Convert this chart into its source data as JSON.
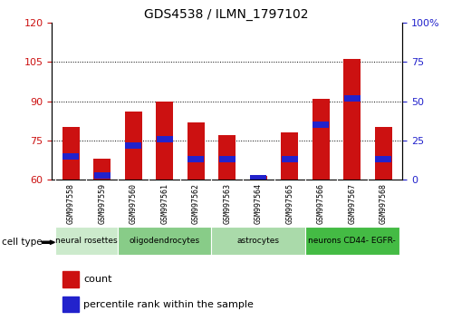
{
  "title": "GDS4538 / ILMN_1797102",
  "samples": [
    "GSM997558",
    "GSM997559",
    "GSM997560",
    "GSM997561",
    "GSM997562",
    "GSM997563",
    "GSM997564",
    "GSM997565",
    "GSM997566",
    "GSM997567",
    "GSM997568"
  ],
  "count_values": [
    80,
    68,
    86,
    90,
    82,
    77,
    61.5,
    78,
    91,
    106,
    80
  ],
  "percentile_values": [
    15,
    3,
    22,
    26,
    13,
    13,
    1,
    13,
    35,
    52,
    13
  ],
  "ylim_left": [
    60,
    120
  ],
  "ylim_right": [
    0,
    100
  ],
  "yticks_left": [
    60,
    75,
    90,
    105,
    120
  ],
  "yticks_right": [
    0,
    25,
    50,
    75,
    100
  ],
  "cell_types": [
    {
      "label": "neural rosettes",
      "start": 0,
      "end": 1,
      "color": "#d4f0d4"
    },
    {
      "label": "oligodendrocytes",
      "start": 2,
      "end": 4,
      "color": "#90d890"
    },
    {
      "label": "astrocytes",
      "start": 5,
      "end": 7,
      "color": "#b8e8b8"
    },
    {
      "label": "neurons CD44- EGFR-",
      "start": 8,
      "end": 10,
      "color": "#44cc44"
    }
  ],
  "bar_width": 0.55,
  "count_color": "#cc1111",
  "percentile_color": "#2222cc",
  "grid_color": "#000000",
  "tick_bg_color": "#c8c8c8",
  "left_tick_color": "#cc1111",
  "right_tick_color": "#2222cc"
}
